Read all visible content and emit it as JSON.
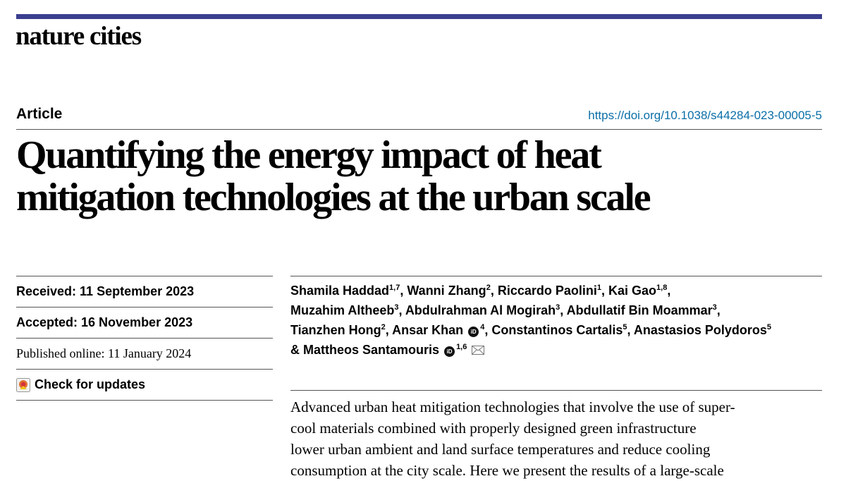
{
  "journal": "nature cities",
  "article_type": "Article",
  "doi": "https://doi.org/10.1038/s44284-023-00005-5",
  "title_line1": "Quantifying the energy impact of heat",
  "title_line2": "mitigation technologies at the urban scale",
  "dates": {
    "received": "Received: 11 September 2023",
    "accepted": "Accepted: 16 November 2023",
    "published": "Published online: 11 January 2024"
  },
  "check_updates": "Check for updates",
  "authors": {
    "a1": "Shamila Haddad",
    "s1": "1,7",
    "a2": "Wanni Zhang",
    "s2": "2",
    "a3": "Riccardo Paolini",
    "s3": "1",
    "a4": "Kai Gao",
    "s4": "1,8",
    "a5": "Muzahim Altheeb",
    "s5": "3",
    "a6": "Abdulrahman Al Mogirah",
    "s6": "3",
    "a7": "Abdullatif Bin Moammar",
    "s7": "3",
    "a8": "Tianzhen Hong",
    "s8": "2",
    "a9": "Ansar Khan",
    "s9": "4",
    "a10": "Constantinos Cartalis",
    "s10": "5",
    "a11": "Anastasios Polydoros",
    "s11": "5",
    "a12": "& Mattheos Santamouris",
    "s12": "1,6",
    "orcid": "iD"
  },
  "abstract": {
    "l1": "Advanced urban heat mitigation technologies that involve the use of super-",
    "l2": "cool materials combined with properly designed green infrastructure",
    "l3": "lower urban ambient and land surface temperatures and reduce cooling",
    "l4": "consumption at the city scale. Here we present the results of a large-scale"
  },
  "icons": {
    "check": "check-updates-icon",
    "orcid": "orcid-icon",
    "mail": "envelope-icon"
  },
  "colors": {
    "topbar": "#3a3f8f",
    "doi": "#0a6ea8"
  }
}
